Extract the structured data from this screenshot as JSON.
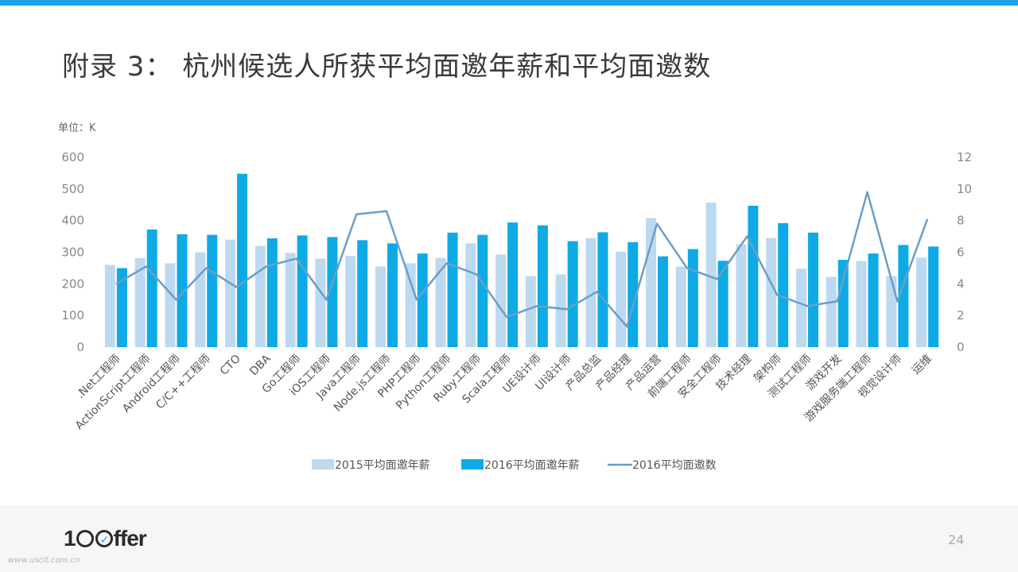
{
  "title": "附录 3： 杭州候选人所获平均面邀年薪和平均面邀数",
  "unit_label": "单位：K",
  "page_number": "24",
  "logo": {
    "prefix": "1",
    "mid": "O",
    "suffix": "ffer"
  },
  "watermark": "www.uscit.com.cn",
  "colors": {
    "accent": "#1ea3e6",
    "bar2015": "#bcd9f0",
    "bar2016": "#0eaae6",
    "line2016": "#6a9ec8"
  },
  "chart_data": {
    "type": "bar",
    "title": "",
    "xlabel": "",
    "ylabel": "",
    "ylim": [
      0,
      600
    ],
    "y_ticks": [
      0,
      100,
      200,
      300,
      400,
      500,
      600
    ],
    "y2lim": [
      0,
      12
    ],
    "y2_ticks": [
      0,
      2,
      4,
      6,
      8,
      10,
      12
    ],
    "legend_position": "bottom",
    "grid": false,
    "categories": [
      ".Net工程师",
      "ActionScript工程师",
      "Android工程师",
      "C/C++工程师",
      "CTO",
      "DBA",
      "Go工程师",
      "iOS工程师",
      "Java工程师",
      "Node.js工程师",
      "PHP工程师",
      "Python工程师",
      "Ruby工程师",
      "Scala工程师",
      "UE设计师",
      "UI设计师",
      "产品总监",
      "产品经理",
      "产品运营",
      "前端工程师",
      "安全工程师",
      "技术经理",
      "架构师",
      "测试工程师",
      "游戏开发",
      "游戏服务端工程师",
      "视觉设计师",
      "运维"
    ],
    "series": [
      {
        "name": "2015平均面邀年薪",
        "kind": "bar",
        "axis": "left",
        "values": [
          260,
          282,
          265,
          300,
          340,
          320,
          298,
          280,
          288,
          255,
          265,
          282,
          328,
          293,
          225,
          230,
          345,
          302,
          408,
          255,
          457,
          325,
          345,
          248,
          222,
          272,
          225,
          283
        ]
      },
      {
        "name": "2016平均面邀年薪",
        "kind": "bar",
        "axis": "left",
        "values": [
          250,
          372,
          357,
          355,
          548,
          344,
          353,
          348,
          338,
          328,
          296,
          362,
          355,
          394,
          385,
          335,
          363,
          332,
          287,
          310,
          273,
          447,
          392,
          362,
          276,
          296,
          323,
          318
        ]
      },
      {
        "name": "2016平均面邀数",
        "kind": "line",
        "axis": "right",
        "values": [
          4.0,
          5.1,
          3.0,
          5.0,
          3.8,
          5.1,
          5.6,
          3.0,
          8.4,
          8.6,
          3.0,
          5.3,
          4.6,
          1.9,
          2.6,
          2.4,
          3.5,
          1.3,
          7.8,
          5.0,
          4.3,
          7.0,
          3.3,
          2.6,
          2.9,
          9.8,
          2.9,
          8.1
        ]
      }
    ]
  }
}
